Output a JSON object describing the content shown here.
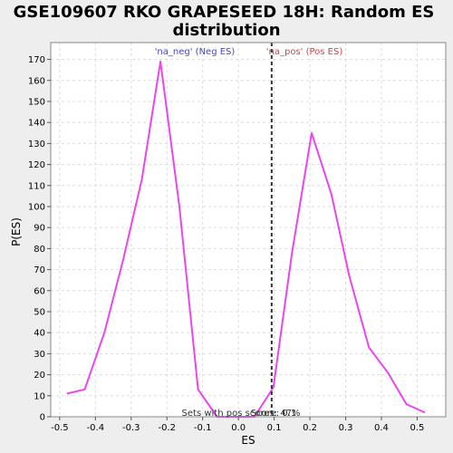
{
  "chart_data": {
    "type": "line",
    "title_line1": "GSE109607 RKO GRAPESEED 18H: Random ES",
    "title_line2": "distribution",
    "xlabel": "ES",
    "ylabel": "P(ES)",
    "xlim": [
      -0.525,
      0.58
    ],
    "ylim": [
      0,
      178
    ],
    "grid": true,
    "x_ticks": [
      -0.5,
      -0.4,
      -0.3,
      -0.2,
      -0.1,
      0.0,
      0.1,
      0.2,
      0.3,
      0.4,
      0.5
    ],
    "x_tick_labels": [
      "-0.5",
      "-0.4",
      "-0.3",
      "-0.2",
      "-0.1",
      "0.0",
      "0.1",
      "0.2",
      "0.3",
      "0.4",
      "0.5"
    ],
    "y_ticks": [
      0,
      10,
      20,
      30,
      40,
      50,
      60,
      70,
      80,
      90,
      100,
      110,
      120,
      130,
      140,
      150,
      160,
      170
    ],
    "y_tick_labels": [
      "0",
      "10",
      "20",
      "30",
      "40",
      "50",
      "60",
      "70",
      "80",
      "90",
      "100",
      "110",
      "120",
      "130",
      "140",
      "150",
      "160",
      "170"
    ],
    "series": [
      {
        "name": "P(ES)",
        "color": "#ee44ee",
        "x": [
          -0.48,
          -0.43,
          -0.375,
          -0.322,
          -0.27,
          -0.218,
          -0.165,
          -0.113,
          -0.06,
          -0.008,
          0.045,
          0.098,
          0.15,
          0.205,
          0.26,
          0.31,
          0.365,
          0.418,
          0.47,
          0.522
        ],
        "y": [
          11,
          13,
          40,
          75,
          113,
          169,
          100,
          13,
          0,
          0,
          0,
          14,
          78,
          135,
          106,
          67,
          33,
          21,
          6,
          2
        ]
      }
    ],
    "vline": {
      "x": 0.093,
      "color": "#333333"
    },
    "annotations": {
      "neg_label": "'na_neg' (Neg ES)",
      "neg_color": "#4444cc",
      "pos_label": "'na_pos' (Pos ES)",
      "pos_color": "#cc4444",
      "score_label": "Score: 0.1",
      "footer_label": "Sets with pos scores: 47%"
    }
  }
}
